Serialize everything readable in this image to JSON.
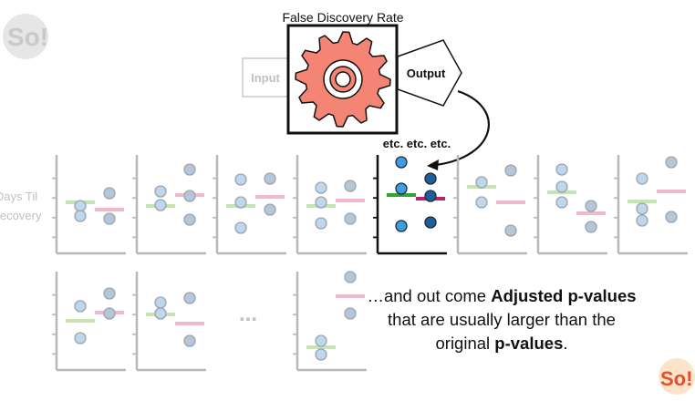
{
  "colors": {
    "gear": "#f48574",
    "point_fill": "#bed7ec",
    "point_stroke": "#9aa3ad",
    "strong_point_fill": "#3f9ee0",
    "strong_point_stroke": "#1b2b3b",
    "green": "#c6e3b4",
    "pink": "#f0b9ce",
    "strong_green": "#2fa52f",
    "strong_pink": "#c01f6e",
    "axis_light": "#b8b8b8",
    "axis_dark": "#111111"
  },
  "title": "False Discovery Rate",
  "input_label": "Input",
  "output_label": "Output",
  "etc_label": "etc. etc. etc.",
  "ylabel_line1": "Days Til",
  "ylabel_line2": "Recovery",
  "ellipsis": "...",
  "caption": {
    "line1_pre": "…and out come ",
    "line1_bold": "Adjusted p-values",
    "line2": "that are usually larger than the",
    "line3_pre": "original ",
    "line3_bold": "p-values",
    "line3_post": "."
  },
  "logo_left": "StatQuest So!",
  "logo_right": "StatQuest So!"
}
